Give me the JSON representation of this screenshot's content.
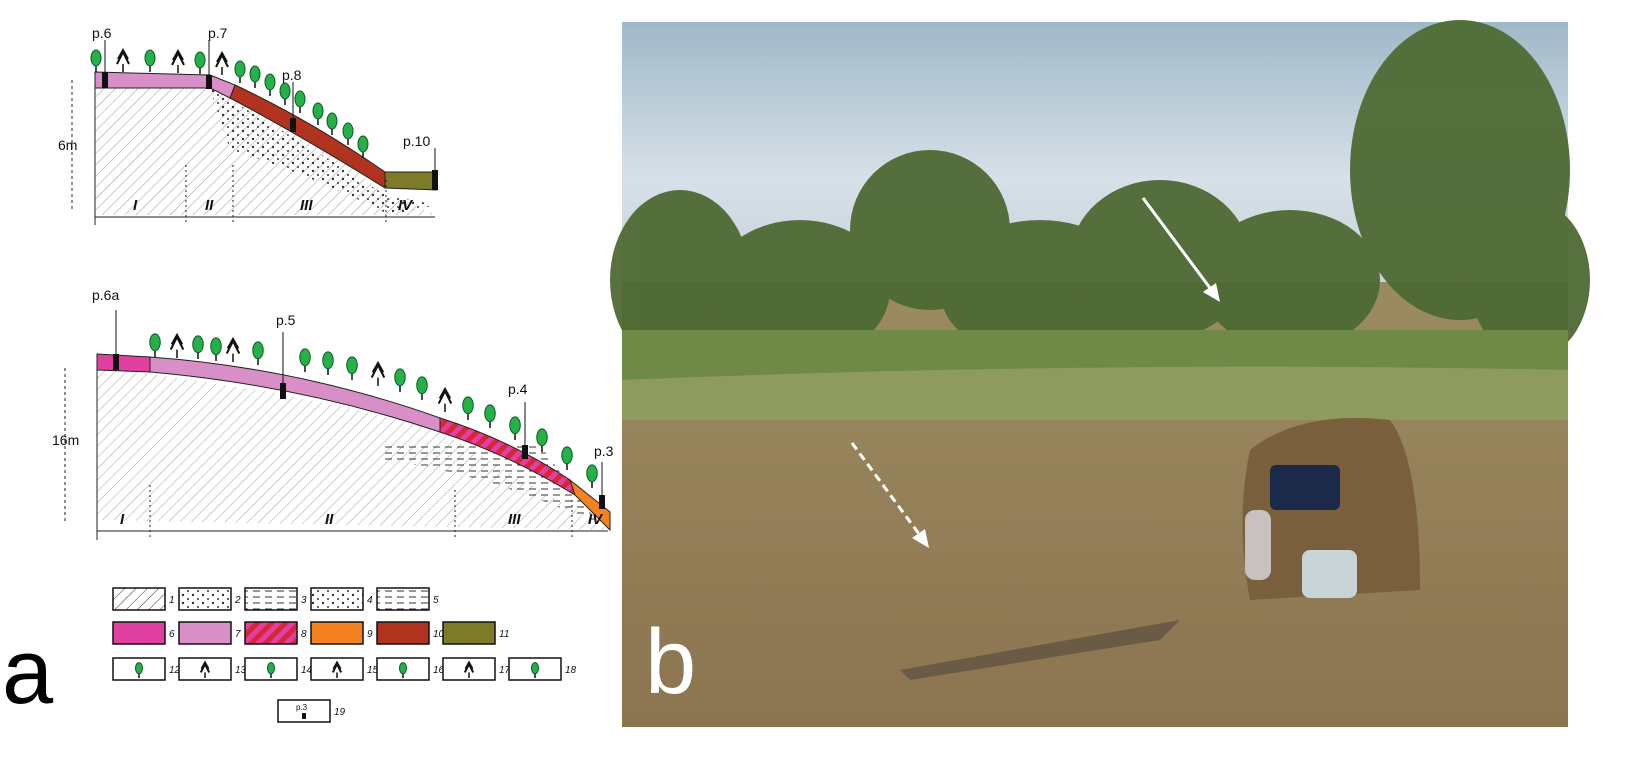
{
  "panel_a": {
    "label": "a",
    "profile_top": {
      "points": [
        "p.6",
        "p.7",
        "p.8",
        "p.10"
      ],
      "height": "6m",
      "zones": [
        "I",
        "II",
        "III",
        "IV"
      ]
    },
    "profile_bottom": {
      "points": [
        "p.6a",
        "p.5",
        "p.4",
        "p.3"
      ],
      "height": "16m",
      "zones": [
        "I",
        "II",
        "III",
        "IV"
      ]
    },
    "legend": {
      "items": [
        "1",
        "2",
        "3",
        "4",
        "5",
        "6",
        "7",
        "8",
        "9",
        "10",
        "11",
        "12",
        "13",
        "14",
        "15",
        "16",
        "17",
        "18",
        "19"
      ],
      "sample_label": "p.3"
    }
  },
  "panel_b": {
    "label": "b"
  }
}
